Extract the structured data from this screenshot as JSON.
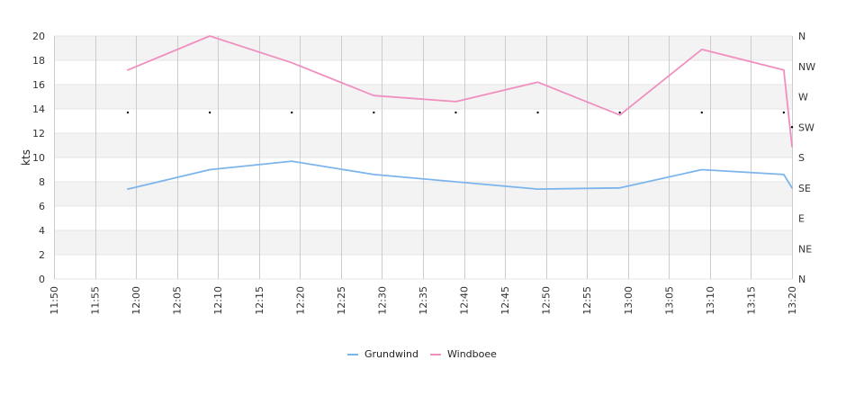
{
  "chart_data": {
    "type": "line",
    "ylabel": "kts",
    "ylim": [
      0,
      20
    ],
    "yticks": [
      "0",
      "2",
      "4",
      "6",
      "8",
      "10",
      "12",
      "14",
      "16",
      "18",
      "20"
    ],
    "xlim": [
      "11:50",
      "13:20"
    ],
    "xticks": [
      "11:50",
      "11:55",
      "12:00",
      "12:05",
      "12:10",
      "12:15",
      "12:20",
      "12:25",
      "12:30",
      "12:35",
      "12:40",
      "12:45",
      "12:50",
      "12:55",
      "13:00",
      "13:05",
      "13:10",
      "13:15",
      "13:20"
    ],
    "direction_axis": [
      "N",
      "NE",
      "E",
      "SE",
      "S",
      "SW",
      "W",
      "NW",
      "N"
    ],
    "grid": true,
    "legend_position": "bottom",
    "series": [
      {
        "name": "Grundwind",
        "color": "#7cb5ec",
        "x": [
          "11:59",
          "12:09",
          "12:19",
          "12:29",
          "12:39",
          "12:49",
          "12:59",
          "13:09",
          "13:19",
          "13:20"
        ],
        "values": [
          7.4,
          9.0,
          9.7,
          8.6,
          8.0,
          7.4,
          7.5,
          9.0,
          8.6,
          7.5
        ]
      },
      {
        "name": "Windboee",
        "color": "#f08fbf",
        "x": [
          "11:59",
          "12:09",
          "12:19",
          "12:29",
          "12:39",
          "12:49",
          "12:59",
          "13:09",
          "13:19",
          "13:20"
        ],
        "values": [
          17.2,
          20.0,
          17.8,
          15.1,
          14.6,
          16.2,
          13.5,
          18.9,
          17.2,
          10.9
        ]
      },
      {
        "name": "direction",
        "color": "#000000",
        "x": [
          "11:59",
          "12:09",
          "12:19",
          "12:29",
          "12:39",
          "12:49",
          "12:59",
          "13:09",
          "13:19",
          "13:20"
        ],
        "values": [
          13.7,
          13.7,
          13.7,
          13.7,
          13.7,
          13.7,
          13.7,
          13.7,
          13.7,
          12.5
        ]
      }
    ]
  }
}
